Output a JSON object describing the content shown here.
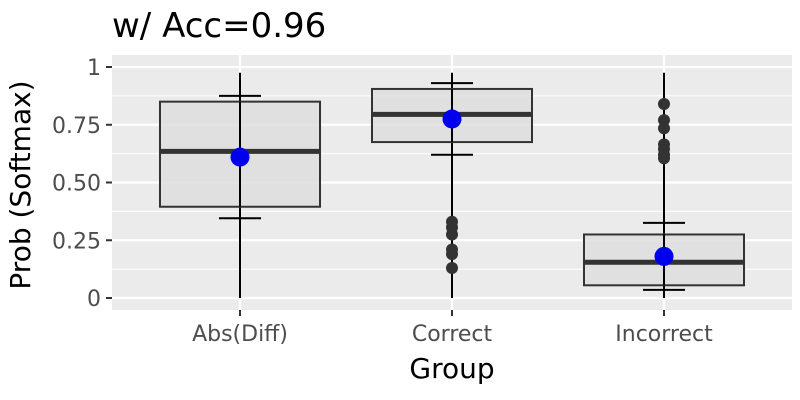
{
  "chart_data": {
    "type": "boxplot",
    "title": "w/ Acc=0.96",
    "xlabel": "Group",
    "ylabel": "Prob (Softmax)",
    "ylim": [
      0,
      1.05
    ],
    "y_ticks": [
      0,
      0.25,
      0.5,
      0.75,
      1
    ],
    "y_tick_labels": [
      "0",
      "0.25",
      "0.50",
      "0.75",
      "1"
    ],
    "categories": [
      "Abs(Diff)",
      "Correct",
      "Incorrect"
    ],
    "grid": true,
    "colors": {
      "panel": "#ebebeb",
      "grid": "#ffffff",
      "box_fill": "#dedede",
      "box_stroke": "#333333",
      "median": "#333333",
      "mean_point": "#0000ee",
      "outlier": "#333333"
    },
    "boxes": [
      {
        "category": "Abs(Diff)",
        "q1": 0.395,
        "median": 0.635,
        "q3": 0.85,
        "whisker_low": 0.0,
        "whisker_high": 0.975,
        "errorbar_low": 0.345,
        "errorbar_high": 0.875,
        "mean": 0.61,
        "outliers": []
      },
      {
        "category": "Correct",
        "q1": 0.675,
        "median": 0.795,
        "q3": 0.905,
        "whisker_low": 0.0,
        "whisker_high": 0.975,
        "errorbar_low": 0.62,
        "errorbar_high": 0.93,
        "mean": 0.775,
        "outliers": [
          0.13,
          0.19,
          0.21,
          0.275,
          0.305,
          0.33
        ]
      },
      {
        "category": "Incorrect",
        "q1": 0.055,
        "median": 0.155,
        "q3": 0.275,
        "whisker_low": 0.0,
        "whisker_high": 0.975,
        "errorbar_low": 0.035,
        "errorbar_high": 0.325,
        "mean": 0.18,
        "outliers": [
          0.605,
          0.62,
          0.645,
          0.665,
          0.735,
          0.77,
          0.84
        ]
      }
    ]
  }
}
